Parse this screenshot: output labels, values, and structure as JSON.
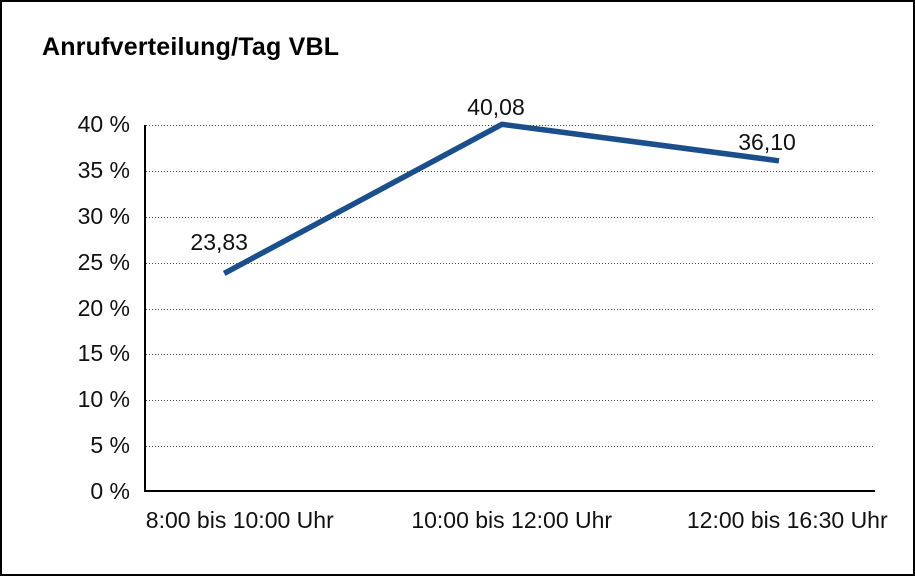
{
  "title": "Anrufverteilung/Tag VBL",
  "chart_data": {
    "type": "line",
    "title": "Anrufverteilung/Tag VBL",
    "categories": [
      "8:00 bis 10:00 Uhr",
      "10:00 bis 12:00 Uhr",
      "12:00 bis 16:30 Uhr"
    ],
    "values": [
      23.83,
      40.08,
      36.1
    ],
    "data_labels": [
      "23,83",
      "40,08",
      "36,10"
    ],
    "series_name": "Anrufverteilung/Tag VBL",
    "xlabel": "",
    "ylabel": "",
    "ylim": [
      0,
      40
    ],
    "ytick_step": 5,
    "ytick_labels": [
      "0 %",
      "5 %",
      "10 %",
      "15 %",
      "20 %",
      "25 %",
      "30 %",
      "35 %",
      "40 %"
    ],
    "grid": "horizontal-dotted",
    "legend": "none",
    "line_color": "#1a4f8c",
    "axis_color": "#000000"
  }
}
